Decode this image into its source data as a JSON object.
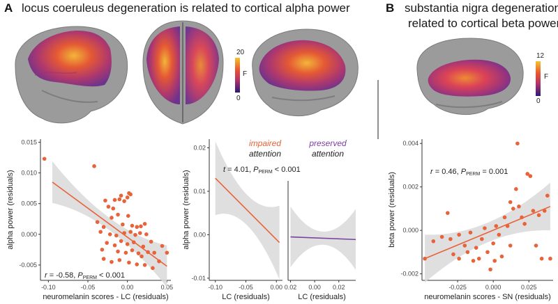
{
  "panel_a": {
    "letter": "A",
    "title": "locus coeruleus degeneration is related to cortical alpha power",
    "colorbar": {
      "max": "20",
      "min": "0",
      "label": "F"
    }
  },
  "panel_b": {
    "letter": "B",
    "title_line1": "substantia nigra degeneration is",
    "title_line2": "related to cortical beta power",
    "colorbar": {
      "max": "12",
      "min": "0",
      "label": "F"
    }
  },
  "colors": {
    "scatter_orange": "#e8623a",
    "purple_line": "#7b3fa0",
    "ci_gray": "#d9d9d9",
    "brain_gray": "#9a9a9a"
  },
  "chart_data": [
    {
      "id": "lc-alpha-scatter",
      "type": "scatter",
      "xlabel": "neuromelanin scores - LC (residuals)",
      "ylabel": "alpha power (residuals)",
      "xlim": [
        -0.11,
        0.055
      ],
      "ylim": [
        -0.0075,
        0.0155
      ],
      "xticks": [
        "-0.10",
        "-0.05",
        "0.00",
        "0.05"
      ],
      "yticks": [
        "-0.005",
        "0.000",
        "0.005",
        "0.010",
        "0.015"
      ],
      "annotation": {
        "r": "r = -0.58, ",
        "p_label": "P",
        "p_sub": "PERM",
        "p_value": " < 0.001"
      },
      "fit": {
        "x": [
          -0.095,
          0.05
        ],
        "y": [
          0.0085,
          -0.0052
        ]
      },
      "points": [
        [
          -0.105,
          0.0123
        ],
        [
          -0.042,
          0.0111
        ],
        [
          -0.028,
          0.0055
        ],
        [
          -0.016,
          0.0056
        ],
        [
          -0.01,
          0.0057
        ],
        [
          -0.008,
          0.0063
        ],
        [
          -0.004,
          0.0054
        ],
        [
          0.0,
          0.006
        ],
        [
          0.002,
          0.0067
        ],
        [
          0.004,
          0.0065
        ],
        [
          -0.024,
          0.0045
        ],
        [
          -0.018,
          0.0042
        ],
        [
          -0.012,
          0.0032
        ],
        [
          -0.02,
          0.0027
        ],
        [
          0.001,
          0.003
        ],
        [
          -0.038,
          0.002
        ],
        [
          -0.03,
          0.0012
        ],
        [
          -0.006,
          0.0016
        ],
        [
          0.006,
          0.0014
        ],
        [
          0.012,
          0.0012
        ],
        [
          0.017,
          0.0013
        ],
        [
          0.022,
          0.0017
        ],
        [
          -0.034,
          0.0004
        ],
        [
          -0.022,
          0.0
        ],
        [
          -0.014,
          -0.0002
        ],
        [
          -0.004,
          0.0002
        ],
        [
          0.004,
          0.0004
        ],
        [
          0.01,
          -0.0001
        ],
        [
          0.016,
          0.0002
        ],
        [
          0.024,
          0.0
        ],
        [
          -0.026,
          -0.0014
        ],
        [
          -0.016,
          -0.0018
        ],
        [
          -0.008,
          -0.0011
        ],
        [
          0.0,
          -0.0016
        ],
        [
          0.008,
          -0.0013
        ],
        [
          0.02,
          -0.002
        ],
        [
          0.03,
          -0.0012
        ],
        [
          0.044,
          -0.0019
        ],
        [
          -0.012,
          -0.0028
        ],
        [
          -0.002,
          -0.003
        ],
        [
          0.006,
          -0.0026
        ],
        [
          0.014,
          -0.0031
        ],
        [
          0.026,
          -0.0029
        ],
        [
          0.034,
          -0.003
        ],
        [
          0.05,
          -0.003
        ],
        [
          -0.03,
          -0.004
        ],
        [
          -0.02,
          -0.0045
        ],
        [
          -0.01,
          -0.0042
        ],
        [
          0.002,
          -0.0046
        ],
        [
          0.012,
          -0.0049
        ],
        [
          0.022,
          -0.005
        ],
        [
          0.032,
          -0.0055
        ],
        [
          -0.032,
          -0.0025
        ],
        [
          0.04,
          -0.0044
        ],
        [
          0.018,
          -0.0036
        ]
      ]
    },
    {
      "id": "lc-alpha-impaired",
      "type": "line",
      "legend": "impaired attention",
      "xlabel": "LC (residuals)",
      "ylabel": "alpha power (residuals)",
      "xlim": [
        -0.11,
        0.01
      ],
      "ylim": [
        -0.0105,
        0.022
      ],
      "xticks": [
        "-0.10",
        "-0.05",
        "0.00"
      ],
      "yticks": [
        "-0.01",
        "0.00",
        "0.01",
        "0.02"
      ],
      "fit": {
        "x": [
          -0.1,
          0.005
        ],
        "y": [
          0.013,
          -0.0018
        ]
      }
    },
    {
      "id": "lc-alpha-preserved",
      "type": "line",
      "legend": "preserved attention",
      "xlabel": "LC (residuals)",
      "xlim": [
        -0.022,
        0.034
      ],
      "xticks": [
        "0.02",
        "0.00",
        "0.02"
      ],
      "fit": {
        "x": [
          -0.02,
          0.034
        ],
        "y": [
          -0.0005,
          -0.0011
        ]
      }
    },
    {
      "id": "sn-beta-scatter",
      "type": "scatter",
      "xlabel": "neuromelanin scores - SN (residuals)",
      "ylabel": "beta power (residuals)",
      "xlim": [
        -0.05,
        0.042
      ],
      "ylim": [
        -0.0023,
        0.0042
      ],
      "xticks": [
        "-0.025",
        "0.000",
        "0.025"
      ],
      "yticks": [
        "-0.002",
        "0.000",
        "0.002",
        "0.004"
      ],
      "annotation": {
        "r": "r = 0.46, ",
        "p_label": "P",
        "p_sub": "PERM",
        "p_value": " = 0.001"
      },
      "fit": {
        "x": [
          -0.048,
          0.04
        ],
        "y": [
          -0.0013,
          0.0011
        ]
      },
      "points": [
        [
          -0.048,
          -0.0013
        ],
        [
          -0.042,
          -0.0005
        ],
        [
          -0.036,
          -0.0003
        ],
        [
          -0.032,
          0.0008
        ],
        [
          -0.03,
          -0.0004
        ],
        [
          -0.028,
          -0.0011
        ],
        [
          -0.024,
          -0.0002
        ],
        [
          -0.02,
          -0.0007
        ],
        [
          -0.018,
          -0.001
        ],
        [
          -0.016,
          -0.0001
        ],
        [
          -0.012,
          -0.0008
        ],
        [
          -0.01,
          -0.0013
        ],
        [
          -0.008,
          -0.0004
        ],
        [
          -0.006,
          0.0001
        ],
        [
          -0.004,
          -0.001
        ],
        [
          -0.002,
          -0.0018
        ],
        [
          0.0,
          -0.0006
        ],
        [
          0.002,
          0.0002
        ],
        [
          0.004,
          -0.0002
        ],
        [
          0.006,
          -0.0012
        ],
        [
          0.008,
          0.0006
        ],
        [
          0.01,
          0.0002
        ],
        [
          0.012,
          -0.0007
        ],
        [
          0.014,
          0.001
        ],
        [
          0.016,
          0.0019
        ],
        [
          0.018,
          0.0011
        ],
        [
          0.02,
          0.0006
        ],
        [
          0.022,
          0.0003
        ],
        [
          0.024,
          0.0026
        ],
        [
          0.026,
          0.0025
        ],
        [
          0.028,
          0.0009
        ],
        [
          0.03,
          -0.0007
        ],
        [
          0.032,
          0.0007
        ],
        [
          0.034,
          -0.0013
        ],
        [
          0.036,
          0.0009
        ],
        [
          0.038,
          0.0016
        ],
        [
          0.04,
          -0.0013
        ],
        [
          0.017,
          0.004
        ],
        [
          0.001,
          -0.0014
        ],
        [
          -0.024,
          -0.0013
        ],
        [
          0.012,
          0.0013
        ],
        [
          -0.014,
          -0.0014
        ]
      ]
    }
  ]
}
